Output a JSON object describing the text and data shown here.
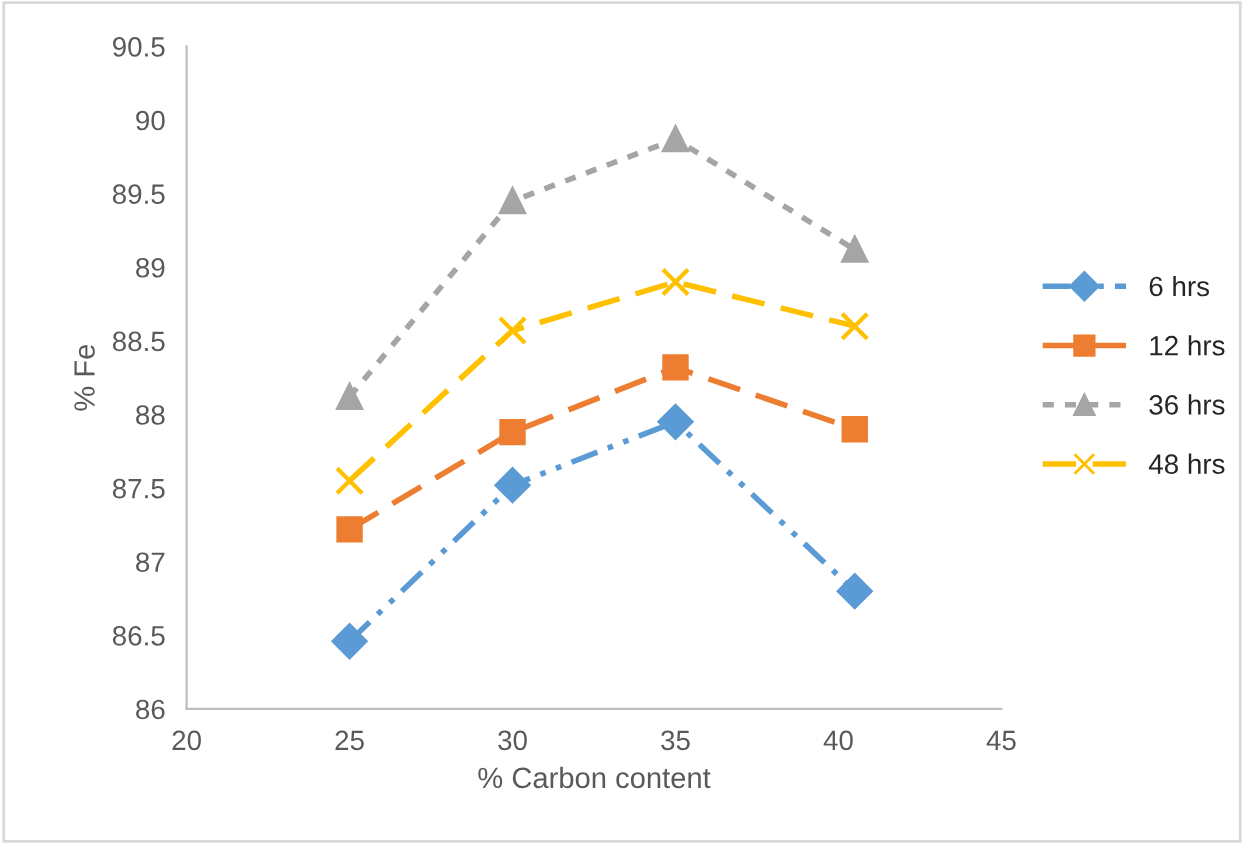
{
  "chart_data": {
    "type": "line",
    "xlabel": "% Carbon content",
    "ylabel": "% Fe",
    "xlim": [
      20,
      45
    ],
    "xticks": [
      20,
      25,
      30,
      35,
      40,
      45
    ],
    "ylim": [
      86,
      90.5
    ],
    "yticks": [
      86,
      86.5,
      87,
      87.5,
      88,
      88.5,
      89,
      89.5,
      90,
      90.5
    ],
    "grid": false,
    "legend": "right",
    "series": [
      {
        "name": "6 hrs",
        "color": "#5b9bd5",
        "marker": "diamond",
        "line_style": "dashdot",
        "x": [
          25,
          30,
          35,
          40.5
        ],
        "values": [
          86.46,
          87.52,
          87.95,
          86.8
        ]
      },
      {
        "name": "12 hrs",
        "color": "#ed7d31",
        "marker": "square",
        "line_style": "dashed",
        "x": [
          25,
          30,
          35,
          40.5
        ],
        "values": [
          87.22,
          87.88,
          88.32,
          87.9
        ]
      },
      {
        "name": "36 hrs",
        "color": "#a5a5a5",
        "marker": "triangle",
        "line_style": "dotted",
        "x": [
          25,
          30,
          35,
          40.5
        ],
        "values": [
          88.12,
          89.45,
          89.87,
          89.12
        ]
      },
      {
        "name": "48 hrs",
        "color": "#ffc000",
        "marker": "cross",
        "line_style": "dashed",
        "x": [
          25,
          30,
          35,
          40.5
        ],
        "values": [
          87.55,
          88.57,
          88.9,
          88.6
        ]
      }
    ]
  }
}
